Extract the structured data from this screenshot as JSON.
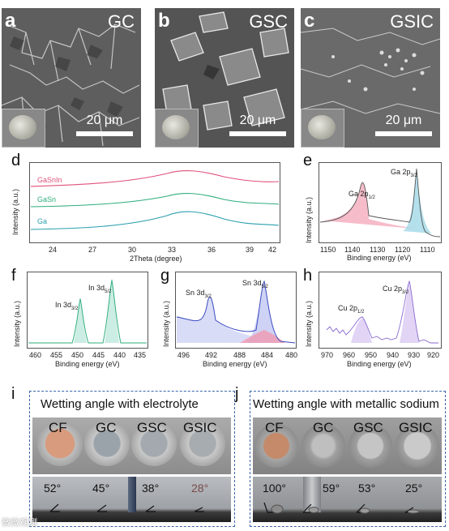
{
  "sem_panels": [
    {
      "letter": "a",
      "name": "GC",
      "scale": "20 μm"
    },
    {
      "letter": "b",
      "name": "GSC",
      "scale": "20 μm"
    },
    {
      "letter": "c",
      "name": "GSIC",
      "scale": "20 μm"
    }
  ],
  "panel_d": {
    "letter": "d",
    "ylabel": "Intensity (a.u.)",
    "xlabel": "2Theta (degree)",
    "ticks": [
      "24",
      "27",
      "30",
      "33",
      "36",
      "39",
      "42"
    ],
    "series": [
      {
        "name": "GaSnIn",
        "color": "#e0507a"
      },
      {
        "name": "GaSn",
        "color": "#2fae7c"
      },
      {
        "name": "Ga",
        "color": "#2a9fae"
      }
    ]
  },
  "panel_e": {
    "letter": "e",
    "ylabel": "Intensity (a.u.)",
    "xlabel": "Binding energy (eV)",
    "ticks": [
      "1150",
      "1140",
      "1130",
      "1120",
      "1110"
    ],
    "peak1": "Ga 2p",
    "peak1_sub": "1/2",
    "peak2": "Ga 2p",
    "peak2_sub": "3/2"
  },
  "panel_f": {
    "letter": "f",
    "ylabel": "Intensity (a.u.)",
    "xlabel": "Binding energy (eV)",
    "ticks": [
      "460",
      "455",
      "450",
      "445",
      "440",
      "435"
    ],
    "peak1": "In 3d",
    "peak1_sub": "3/2",
    "peak2": "In 3d",
    "peak2_sub": "5/2"
  },
  "panel_g": {
    "letter": "g",
    "ylabel": "Intensity (a.u.)",
    "xlabel": "Binding energy (eV)",
    "ticks": [
      "496",
      "492",
      "488",
      "484",
      "480"
    ],
    "peak1": "Sn 3d",
    "peak1_sub": "3/2",
    "peak2": "Sn 3d",
    "peak2_sub": "5/2"
  },
  "panel_h": {
    "letter": "h",
    "ylabel": "Intensity (a.u.)",
    "xlabel": "Binding energy (eV)",
    "ticks": [
      "970",
      "960",
      "950",
      "940",
      "930",
      "920"
    ],
    "peak1": "Cu 2p",
    "peak1_sub": "1/2",
    "peak2": "Cu 2p",
    "peak2_sub": "3/2"
  },
  "panel_i": {
    "letter": "i",
    "title": "Wetting angle with electrolyte",
    "samples": [
      "CF",
      "GC",
      "GSC",
      "GSIC"
    ],
    "angles": [
      "52°",
      "45°",
      "38°",
      "28°"
    ]
  },
  "panel_j": {
    "letter": "j",
    "title": "Wetting angle with metallic sodium",
    "samples": [
      "CF",
      "GC",
      "GSC",
      "GSIC"
    ],
    "angles": [
      "100°",
      "59°",
      "53°",
      "25°"
    ]
  },
  "watermark": "微微观测"
}
